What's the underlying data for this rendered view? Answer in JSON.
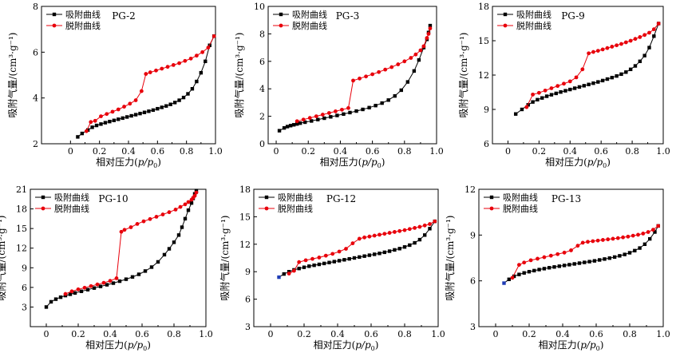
{
  "legend": {
    "adsorption": "吸附曲线",
    "desorption": "脱附曲线"
  },
  "colors": {
    "adsorption": "#000000",
    "desorption": "#e8000b",
    "adsorption_start": "#1f3cb5"
  },
  "chart_data": [
    {
      "type": "line",
      "title": "PG-2",
      "xlabel": "相对压力(p/p0)",
      "ylabel": "吸附气量/(cm³·g⁻¹)",
      "xlim": [
        -0.2,
        1.0
      ],
      "ylim": [
        2,
        8
      ],
      "xticks": [
        "0",
        "0.2",
        "0.4",
        "0.6",
        "0.8",
        "1.0"
      ],
      "yticks": [
        "2",
        "4",
        "6",
        "8"
      ],
      "series": [
        {
          "name": "吸附曲线",
          "x": [
            0.05,
            0.08,
            0.12,
            0.15,
            0.18,
            0.21,
            0.24,
            0.27,
            0.3,
            0.33,
            0.36,
            0.39,
            0.42,
            0.45,
            0.48,
            0.51,
            0.54,
            0.57,
            0.6,
            0.63,
            0.66,
            0.69,
            0.72,
            0.75,
            0.78,
            0.81,
            0.84,
            0.87,
            0.9,
            0.93,
            0.96,
            0.99
          ],
          "y": [
            2.3,
            2.45,
            2.6,
            2.72,
            2.8,
            2.86,
            2.92,
            2.97,
            3.02,
            3.07,
            3.12,
            3.17,
            3.22,
            3.27,
            3.32,
            3.37,
            3.42,
            3.47,
            3.53,
            3.59,
            3.65,
            3.72,
            3.8,
            3.9,
            4.02,
            4.18,
            4.4,
            4.72,
            5.1,
            5.6,
            6.3,
            6.7
          ]
        },
        {
          "name": "脱附曲线",
          "x": [
            0.99,
            0.95,
            0.91,
            0.87,
            0.83,
            0.79,
            0.75,
            0.71,
            0.67,
            0.63,
            0.59,
            0.55,
            0.52,
            0.49,
            0.45,
            0.41,
            0.37,
            0.33,
            0.29,
            0.25,
            0.21,
            0.17,
            0.14,
            0.11
          ],
          "y": [
            6.7,
            6.2,
            6.0,
            5.85,
            5.72,
            5.62,
            5.52,
            5.44,
            5.36,
            5.28,
            5.2,
            5.12,
            5.05,
            4.3,
            3.9,
            3.75,
            3.62,
            3.5,
            3.4,
            3.3,
            3.2,
            3.0,
            2.95,
            2.55
          ]
        }
      ]
    },
    {
      "type": "line",
      "title": "PG-3",
      "xlabel": "相对压力(p/p0)",
      "ylabel": "吸附气量/(cm³·g⁻¹)",
      "xlim": [
        -0.05,
        1.0
      ],
      "ylim": [
        0,
        10
      ],
      "xticks": [
        "0",
        "0.2",
        "0.4",
        "0.6",
        "0.8",
        "1.0"
      ],
      "yticks": [
        "0",
        "2",
        "4",
        "6",
        "8",
        "10"
      ],
      "series": [
        {
          "name": "吸附曲线",
          "x": [
            0.02,
            0.05,
            0.07,
            0.09,
            0.11,
            0.13,
            0.15,
            0.18,
            0.22,
            0.26,
            0.3,
            0.34,
            0.38,
            0.42,
            0.46,
            0.5,
            0.54,
            0.58,
            0.62,
            0.66,
            0.7,
            0.74,
            0.78,
            0.82,
            0.86,
            0.89,
            0.92,
            0.94,
            0.95,
            0.96
          ],
          "y": [
            0.95,
            1.15,
            1.25,
            1.32,
            1.38,
            1.44,
            1.5,
            1.57,
            1.66,
            1.76,
            1.86,
            1.96,
            2.06,
            2.16,
            2.27,
            2.38,
            2.5,
            2.63,
            2.78,
            2.96,
            3.18,
            3.48,
            3.9,
            4.5,
            5.3,
            6.1,
            7.0,
            7.6,
            8.1,
            8.6
          ]
        },
        {
          "name": "脱附曲线",
          "x": [
            0.96,
            0.95,
            0.94,
            0.92,
            0.9,
            0.87,
            0.84,
            0.8,
            0.76,
            0.72,
            0.68,
            0.64,
            0.6,
            0.56,
            0.52,
            0.48,
            0.45,
            0.41,
            0.37,
            0.33,
            0.29,
            0.25,
            0.21,
            0.17,
            0.13
          ],
          "y": [
            8.4,
            8.0,
            7.7,
            7.1,
            6.8,
            6.5,
            6.25,
            6.0,
            5.78,
            5.58,
            5.4,
            5.22,
            5.06,
            4.9,
            4.75,
            4.6,
            2.6,
            2.48,
            2.36,
            2.24,
            2.12,
            2.0,
            1.88,
            1.76,
            1.64
          ]
        }
      ]
    },
    {
      "type": "line",
      "title": "PG-9",
      "xlabel": "相对压力(p/p0)",
      "ylabel": "吸附气量/(cm³·g⁻¹)",
      "xlim": [
        -0.1,
        1.0
      ],
      "ylim": [
        6,
        18
      ],
      "xticks": [
        "0",
        "0.2",
        "0.4",
        "0.6",
        "0.8",
        "1.0"
      ],
      "yticks": [
        "6",
        "9",
        "12",
        "15",
        "18"
      ],
      "series": [
        {
          "name": "吸附曲线",
          "x": [
            0.05,
            0.09,
            0.13,
            0.16,
            0.19,
            0.22,
            0.25,
            0.28,
            0.31,
            0.34,
            0.37,
            0.4,
            0.43,
            0.46,
            0.49,
            0.52,
            0.55,
            0.58,
            0.61,
            0.64,
            0.67,
            0.7,
            0.73,
            0.76,
            0.79,
            0.82,
            0.85,
            0.88,
            0.91,
            0.94,
            0.97
          ],
          "y": [
            8.6,
            9.0,
            9.4,
            9.65,
            9.85,
            10.0,
            10.15,
            10.28,
            10.4,
            10.52,
            10.63,
            10.74,
            10.85,
            10.96,
            11.07,
            11.18,
            11.29,
            11.4,
            11.52,
            11.65,
            11.78,
            11.92,
            12.08,
            12.26,
            12.5,
            12.8,
            13.2,
            13.7,
            14.4,
            15.4,
            16.5
          ]
        },
        {
          "name": "脱附曲线",
          "x": [
            0.97,
            0.94,
            0.91,
            0.88,
            0.85,
            0.82,
            0.79,
            0.76,
            0.73,
            0.7,
            0.67,
            0.64,
            0.61,
            0.58,
            0.55,
            0.52,
            0.48,
            0.44,
            0.4,
            0.36,
            0.32,
            0.28,
            0.24,
            0.2,
            0.16,
            0.12
          ],
          "y": [
            16.5,
            16.0,
            15.7,
            15.5,
            15.32,
            15.16,
            15.0,
            14.86,
            14.72,
            14.6,
            14.48,
            14.36,
            14.24,
            14.12,
            14.02,
            13.9,
            12.5,
            11.8,
            11.45,
            11.25,
            11.05,
            10.85,
            10.65,
            10.45,
            10.3,
            9.2
          ]
        }
      ]
    },
    {
      "type": "line",
      "title": "PG-10",
      "xlabel": "相对压力(p/p0)",
      "ylabel": "吸附气量/(cm³·g⁻¹)",
      "xlim": [
        -0.1,
        1.0
      ],
      "ylim": [
        0,
        21
      ],
      "xticks": [
        "0",
        "0.2",
        "0.4",
        "0.6",
        "0.8",
        "1.0"
      ],
      "yticks": [
        "3",
        "6",
        "9",
        "12",
        "15",
        "18",
        "21"
      ],
      "series": [
        {
          "name": "吸附曲线",
          "x": [
            0.0,
            0.03,
            0.06,
            0.09,
            0.12,
            0.15,
            0.18,
            0.22,
            0.26,
            0.3,
            0.34,
            0.38,
            0.42,
            0.46,
            0.5,
            0.54,
            0.58,
            0.62,
            0.66,
            0.7,
            0.74,
            0.77,
            0.8,
            0.83,
            0.85,
            0.87,
            0.89,
            0.91,
            0.92,
            0.93,
            0.94
          ],
          "y": [
            3.0,
            3.8,
            4.2,
            4.5,
            4.75,
            4.95,
            5.15,
            5.4,
            5.65,
            5.9,
            6.15,
            6.4,
            6.65,
            6.95,
            7.25,
            7.6,
            8.0,
            8.5,
            9.1,
            9.9,
            11.0,
            11.9,
            12.9,
            14.0,
            15.2,
            16.5,
            17.8,
            18.9,
            19.6,
            20.3,
            20.8
          ]
        },
        {
          "name": "脱附曲线",
          "x": [
            0.94,
            0.93,
            0.92,
            0.91,
            0.89,
            0.87,
            0.84,
            0.81,
            0.77,
            0.73,
            0.69,
            0.65,
            0.61,
            0.57,
            0.53,
            0.49,
            0.47,
            0.44,
            0.4,
            0.36,
            0.32,
            0.28,
            0.24,
            0.2,
            0.16,
            0.12
          ],
          "y": [
            20.5,
            20.0,
            19.7,
            19.4,
            19.05,
            18.7,
            18.3,
            17.9,
            17.5,
            17.15,
            16.8,
            16.45,
            16.1,
            15.7,
            15.2,
            14.8,
            14.5,
            7.4,
            7.0,
            6.7,
            6.45,
            6.2,
            5.95,
            5.7,
            5.4,
            5.0
          ]
        }
      ]
    },
    {
      "type": "line",
      "title": "PG-12",
      "xlabel": "相对压力(p/p0)",
      "ylabel": "吸附气量/(cm³·g⁻¹)",
      "xlim": [
        -0.1,
        1.0
      ],
      "ylim": [
        3,
        18
      ],
      "xticks": [
        "0",
        "0.2",
        "0.4",
        "0.6",
        "0.8",
        "1.0"
      ],
      "yticks": [
        "3",
        "6",
        "9",
        "12",
        "15",
        "18"
      ],
      "series": [
        {
          "name": "吸附曲线",
          "x": [
            0.05,
            0.08,
            0.11,
            0.14,
            0.17,
            0.2,
            0.23,
            0.26,
            0.29,
            0.32,
            0.35,
            0.38,
            0.41,
            0.44,
            0.47,
            0.5,
            0.53,
            0.56,
            0.59,
            0.62,
            0.65,
            0.68,
            0.71,
            0.74,
            0.77,
            0.8,
            0.83,
            0.86,
            0.89,
            0.92,
            0.95,
            0.98
          ],
          "y": [
            8.4,
            8.75,
            9.0,
            9.2,
            9.35,
            9.48,
            9.6,
            9.7,
            9.8,
            9.9,
            10.0,
            10.1,
            10.2,
            10.3,
            10.4,
            10.5,
            10.6,
            10.7,
            10.8,
            10.9,
            11.0,
            11.12,
            11.24,
            11.38,
            11.52,
            11.7,
            11.9,
            12.15,
            12.5,
            13.0,
            13.7,
            14.5
          ]
        },
        {
          "name": "脱附曲线",
          "x": [
            0.98,
            0.95,
            0.92,
            0.89,
            0.86,
            0.83,
            0.8,
            0.77,
            0.74,
            0.71,
            0.68,
            0.65,
            0.62,
            0.59,
            0.56,
            0.53,
            0.49,
            0.45,
            0.41,
            0.37,
            0.33,
            0.29,
            0.25,
            0.21,
            0.17,
            0.14,
            0.11
          ],
          "y": [
            14.5,
            14.2,
            14.05,
            13.9,
            13.78,
            13.66,
            13.54,
            13.44,
            13.34,
            13.24,
            13.14,
            13.04,
            12.94,
            12.84,
            12.74,
            12.6,
            12.1,
            11.5,
            11.2,
            10.95,
            10.75,
            10.55,
            10.4,
            10.25,
            10.05,
            9.1,
            8.8
          ]
        }
      ]
    },
    {
      "type": "line",
      "title": "PG-13",
      "xlabel": "相对压力(p/p0)",
      "ylabel": "吸附气量/(cm³·g⁻¹)",
      "xlim": [
        -0.1,
        1.0
      ],
      "ylim": [
        3,
        12
      ],
      "xticks": [
        "0",
        "0.2",
        "0.4",
        "0.6",
        "0.8",
        "1.0"
      ],
      "yticks": [
        "3",
        "6",
        "9",
        "12"
      ],
      "series": [
        {
          "name": "吸附曲线",
          "x": [
            0.05,
            0.08,
            0.11,
            0.14,
            0.17,
            0.2,
            0.23,
            0.26,
            0.29,
            0.32,
            0.35,
            0.38,
            0.41,
            0.44,
            0.47,
            0.5,
            0.53,
            0.56,
            0.59,
            0.62,
            0.65,
            0.68,
            0.71,
            0.74,
            0.77,
            0.8,
            0.83,
            0.86,
            0.89,
            0.92,
            0.95,
            0.97
          ],
          "y": [
            5.85,
            6.1,
            6.3,
            6.42,
            6.52,
            6.6,
            6.67,
            6.74,
            6.8,
            6.86,
            6.91,
            6.96,
            7.01,
            7.06,
            7.11,
            7.16,
            7.21,
            7.26,
            7.31,
            7.37,
            7.43,
            7.49,
            7.56,
            7.64,
            7.73,
            7.84,
            7.98,
            8.15,
            8.4,
            8.75,
            9.2,
            9.6
          ]
        },
        {
          "name": "脱附曲线",
          "x": [
            0.97,
            0.94,
            0.91,
            0.88,
            0.85,
            0.82,
            0.79,
            0.76,
            0.73,
            0.7,
            0.67,
            0.64,
            0.61,
            0.58,
            0.55,
            0.52,
            0.49,
            0.45,
            0.41,
            0.37,
            0.33,
            0.29,
            0.25,
            0.21,
            0.17,
            0.14,
            0.1
          ],
          "y": [
            9.6,
            9.35,
            9.2,
            9.1,
            9.02,
            8.96,
            8.9,
            8.85,
            8.8,
            8.76,
            8.72,
            8.68,
            8.64,
            8.6,
            8.56,
            8.5,
            8.3,
            8.0,
            7.85,
            7.75,
            7.65,
            7.55,
            7.45,
            7.35,
            7.2,
            7.05,
            6.2
          ]
        }
      ]
    }
  ]
}
